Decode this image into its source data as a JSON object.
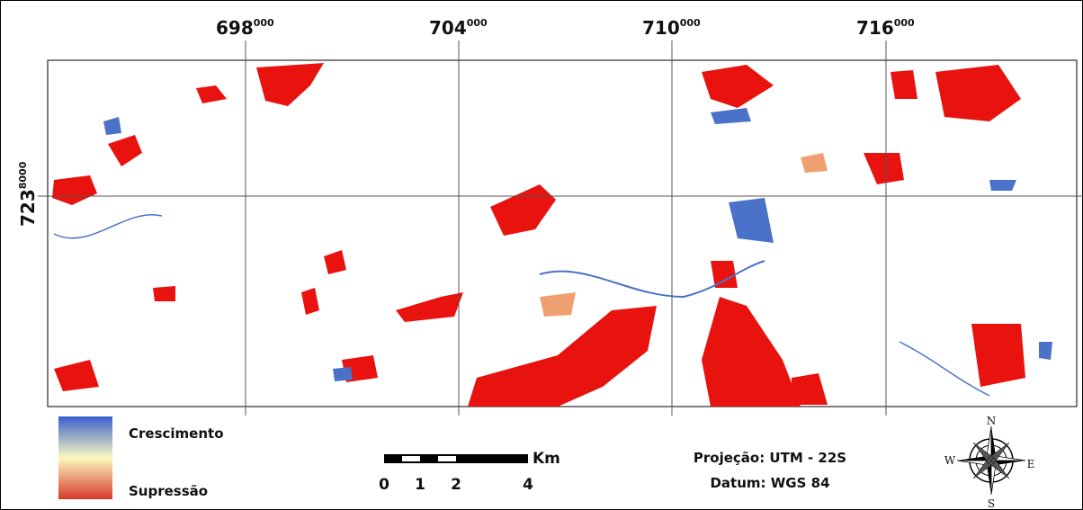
{
  "map": {
    "x_labels": [
      {
        "main": "698",
        "sup": "000"
      },
      {
        "main": "704",
        "sup": "000"
      },
      {
        "main": "710",
        "sup": "000"
      },
      {
        "main": "716",
        "sup": "000"
      }
    ],
    "y_label": {
      "main": "723",
      "sup": "8000"
    },
    "legend": {
      "top": "Crescimento",
      "bottom": "Supressão"
    },
    "scale_bar": {
      "unit": "Km",
      "labels": [
        "0",
        "1",
        "2",
        "4"
      ]
    },
    "projection": "Projeção: UTM - 22S",
    "datum": "Datum: WGS 84",
    "compass": {
      "n": "N",
      "s": "S",
      "w": "W",
      "e": "E"
    }
  }
}
